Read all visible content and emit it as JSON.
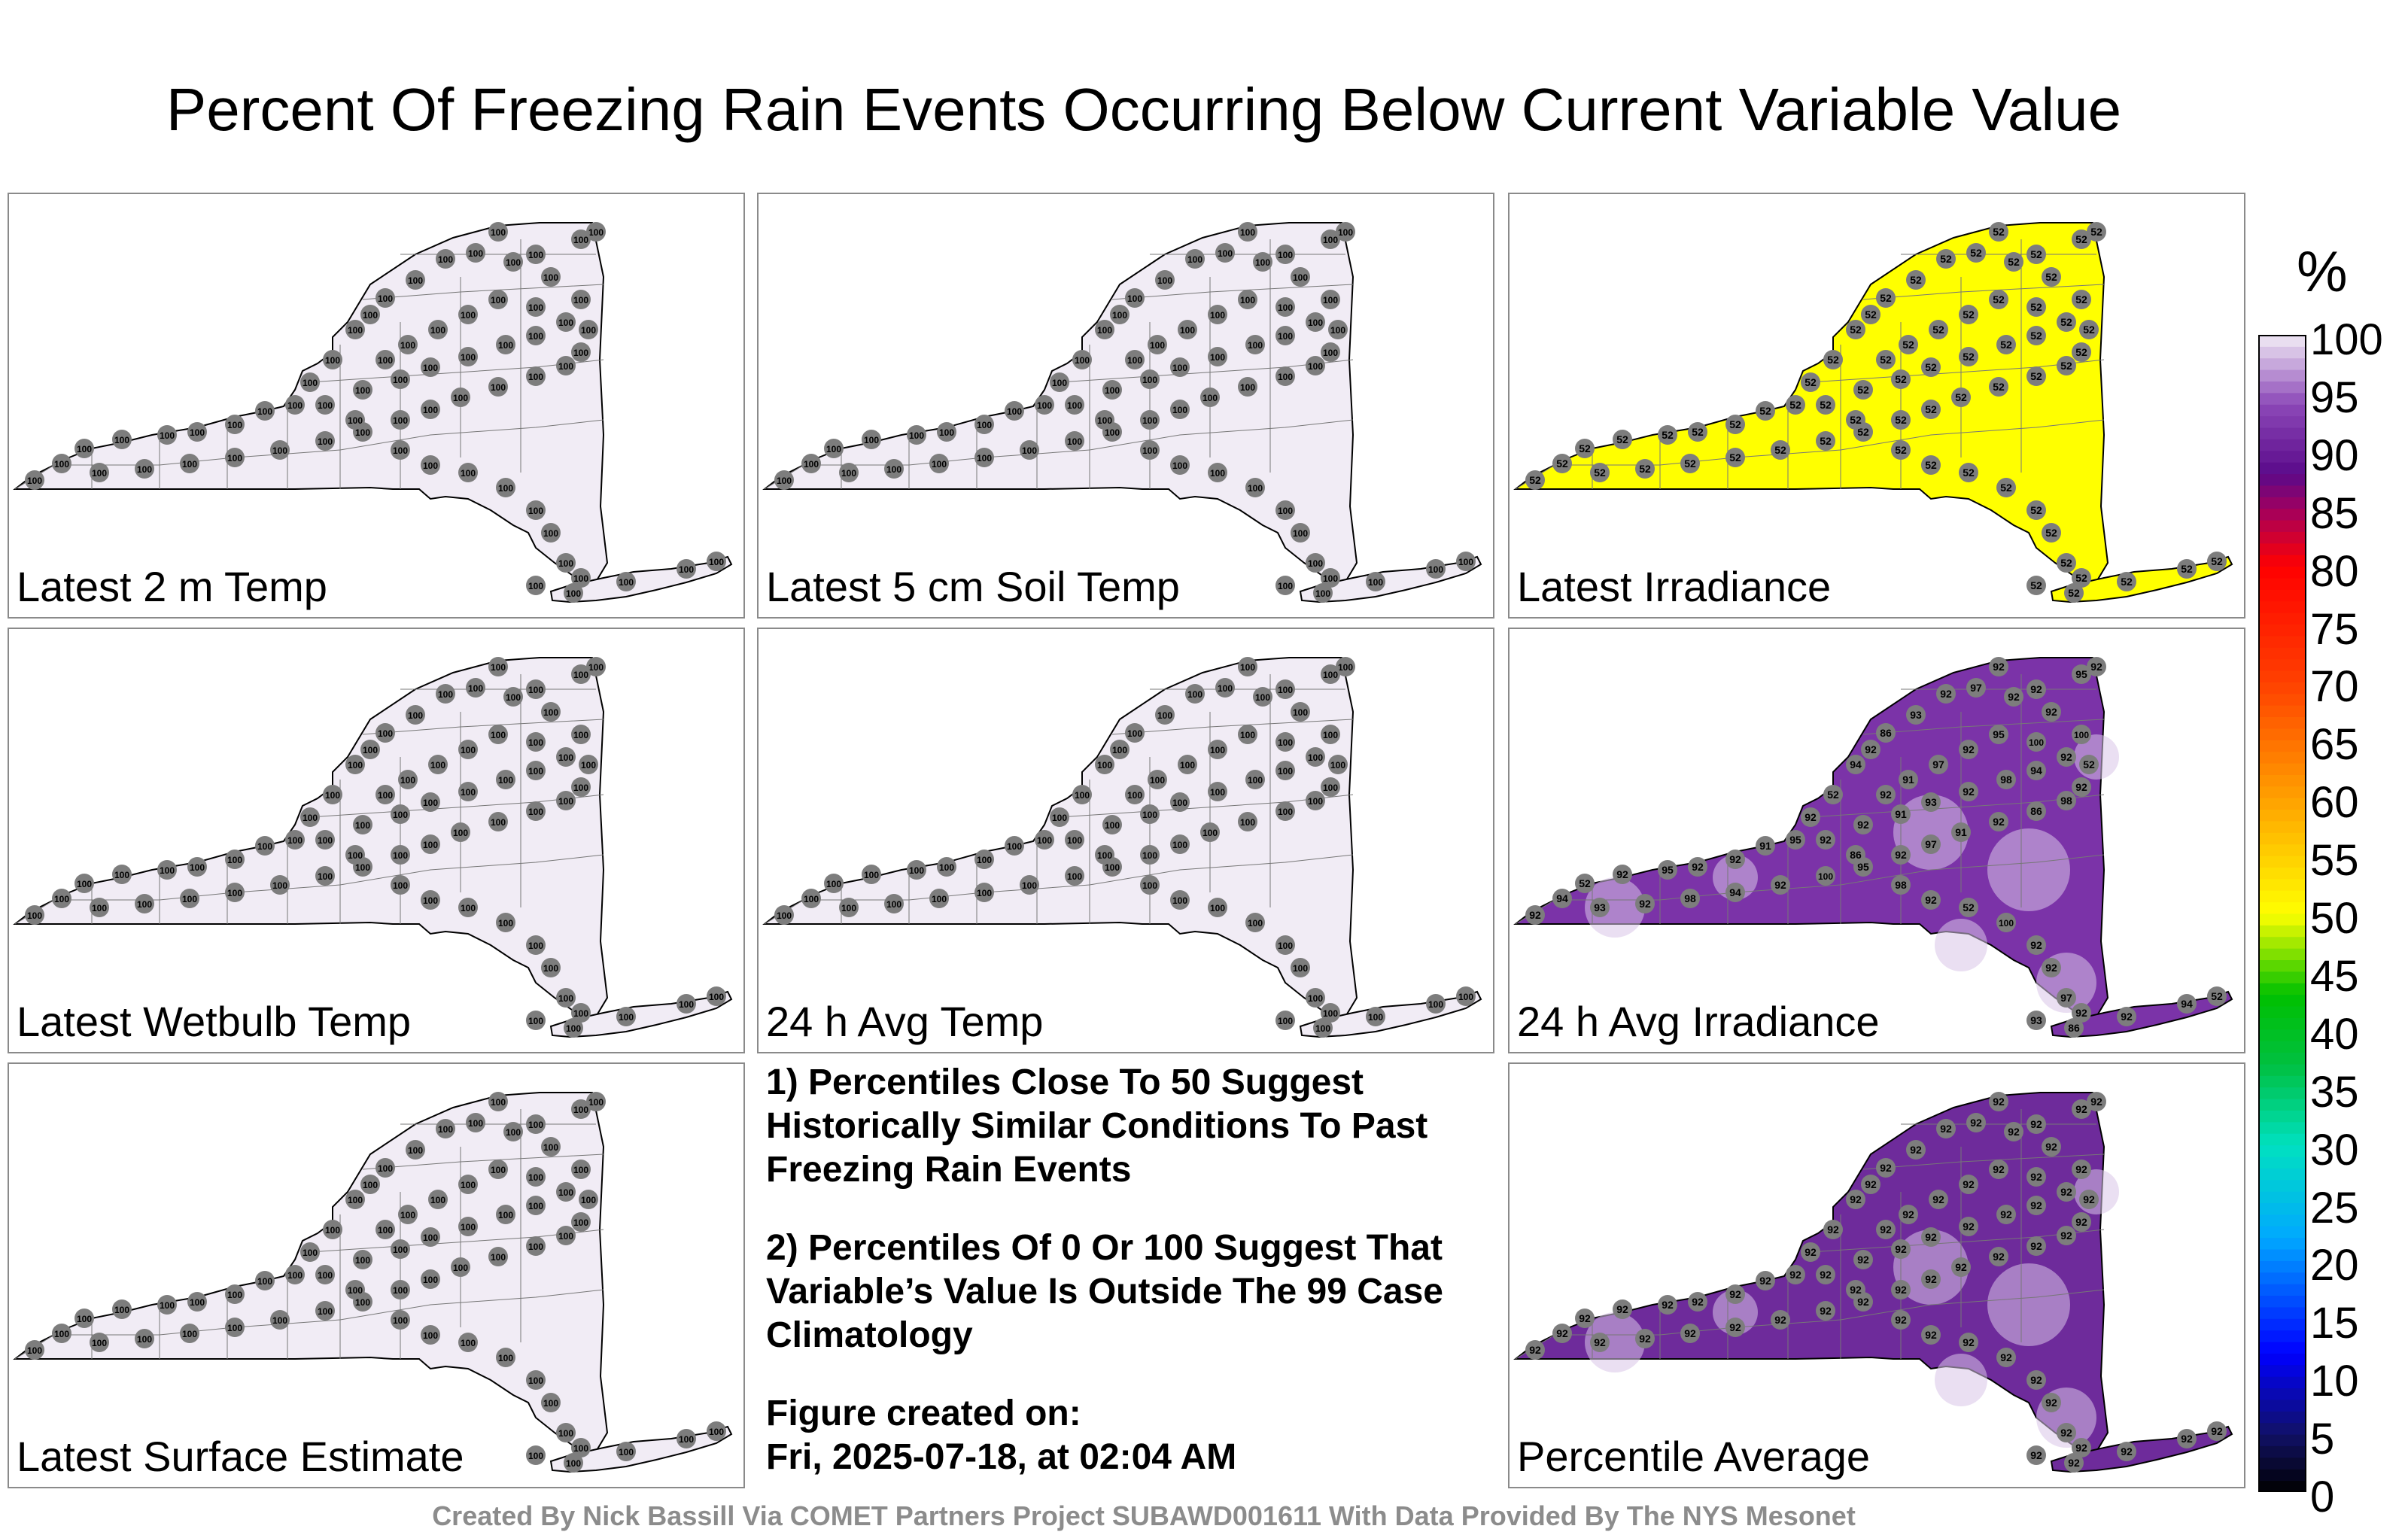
{
  "title": "Percent Of Freezing Rain Events Occurring Below Current Variable Value",
  "panels": [
    {
      "label": "Latest 2 m Temp",
      "fill": "#f1ecf5",
      "value": "100",
      "style": "flat"
    },
    {
      "label": "Latest 5 cm Soil Temp",
      "fill": "#f1ecf5",
      "value": "100",
      "style": "flat"
    },
    {
      "label": "Latest Irradiance",
      "fill": "#ffff00",
      "value": "52",
      "style": "flat"
    },
    {
      "label": "Latest Wetbulb Temp",
      "fill": "#f1ecf5",
      "value": "100",
      "style": "flat"
    },
    {
      "label": "24 h Avg Temp",
      "fill": "#f1ecf5",
      "value": "100",
      "style": "flat"
    },
    {
      "label": "24 h Avg Irradiance",
      "fill": "#7b33a8",
      "value": "92",
      "style": "mixed",
      "values": [
        "92",
        "93",
        "94",
        "95",
        "91",
        "98",
        "100",
        "97",
        "86",
        "52"
      ]
    },
    {
      "label": "Latest Surface Estimate",
      "fill": "#f1ecf5",
      "value": "100",
      "style": "flat"
    },
    {
      "label": "Percentile Average",
      "fill": "#6e2b9b",
      "value": "92",
      "style": "mixed",
      "values": [
        "92",
        "93",
        "91",
        "94",
        "86",
        "100",
        "95"
      ]
    }
  ],
  "notes": {
    "note1": "1) Percentiles Close To 50 Suggest Historically Similar Conditions To Past Freezing Rain Events",
    "note2": "2) Percentiles Of 0 Or 100 Suggest That Variable’s Value Is Outside The 99 Case Climatology",
    "created_label": "Figure created on:",
    "created_date": "Fri, 2025-07-18, at 02:04 AM"
  },
  "legend": {
    "unit": "%",
    "ticks": [
      "100",
      "95",
      "90",
      "85",
      "80",
      "75",
      "70",
      "65",
      "60",
      "55",
      "50",
      "45",
      "40",
      "35",
      "30",
      "25",
      "20",
      "15",
      "10",
      "5",
      "0"
    ],
    "stops": [
      {
        "p": 0,
        "c": "#000000"
      },
      {
        "p": 5,
        "c": "#111166"
      },
      {
        "p": 12,
        "c": "#0000ff"
      },
      {
        "p": 22,
        "c": "#00a8ff"
      },
      {
        "p": 30,
        "c": "#00e0c0"
      },
      {
        "p": 37,
        "c": "#00c040"
      },
      {
        "p": 43,
        "c": "#00c000"
      },
      {
        "p": 50,
        "c": "#ffff00"
      },
      {
        "p": 60,
        "c": "#ffa000"
      },
      {
        "p": 70,
        "c": "#ff4000"
      },
      {
        "p": 80,
        "c": "#ff0000"
      },
      {
        "p": 85,
        "c": "#a00060"
      },
      {
        "p": 88,
        "c": "#5a0a8a"
      },
      {
        "p": 94,
        "c": "#8c48b8"
      },
      {
        "p": 100,
        "c": "#f1ecf5"
      }
    ]
  },
  "credits": "Created By Nick Bassill Via COMET Partners Project SUBAWD001611 With Data Provided By The NYS Mesonet"
}
